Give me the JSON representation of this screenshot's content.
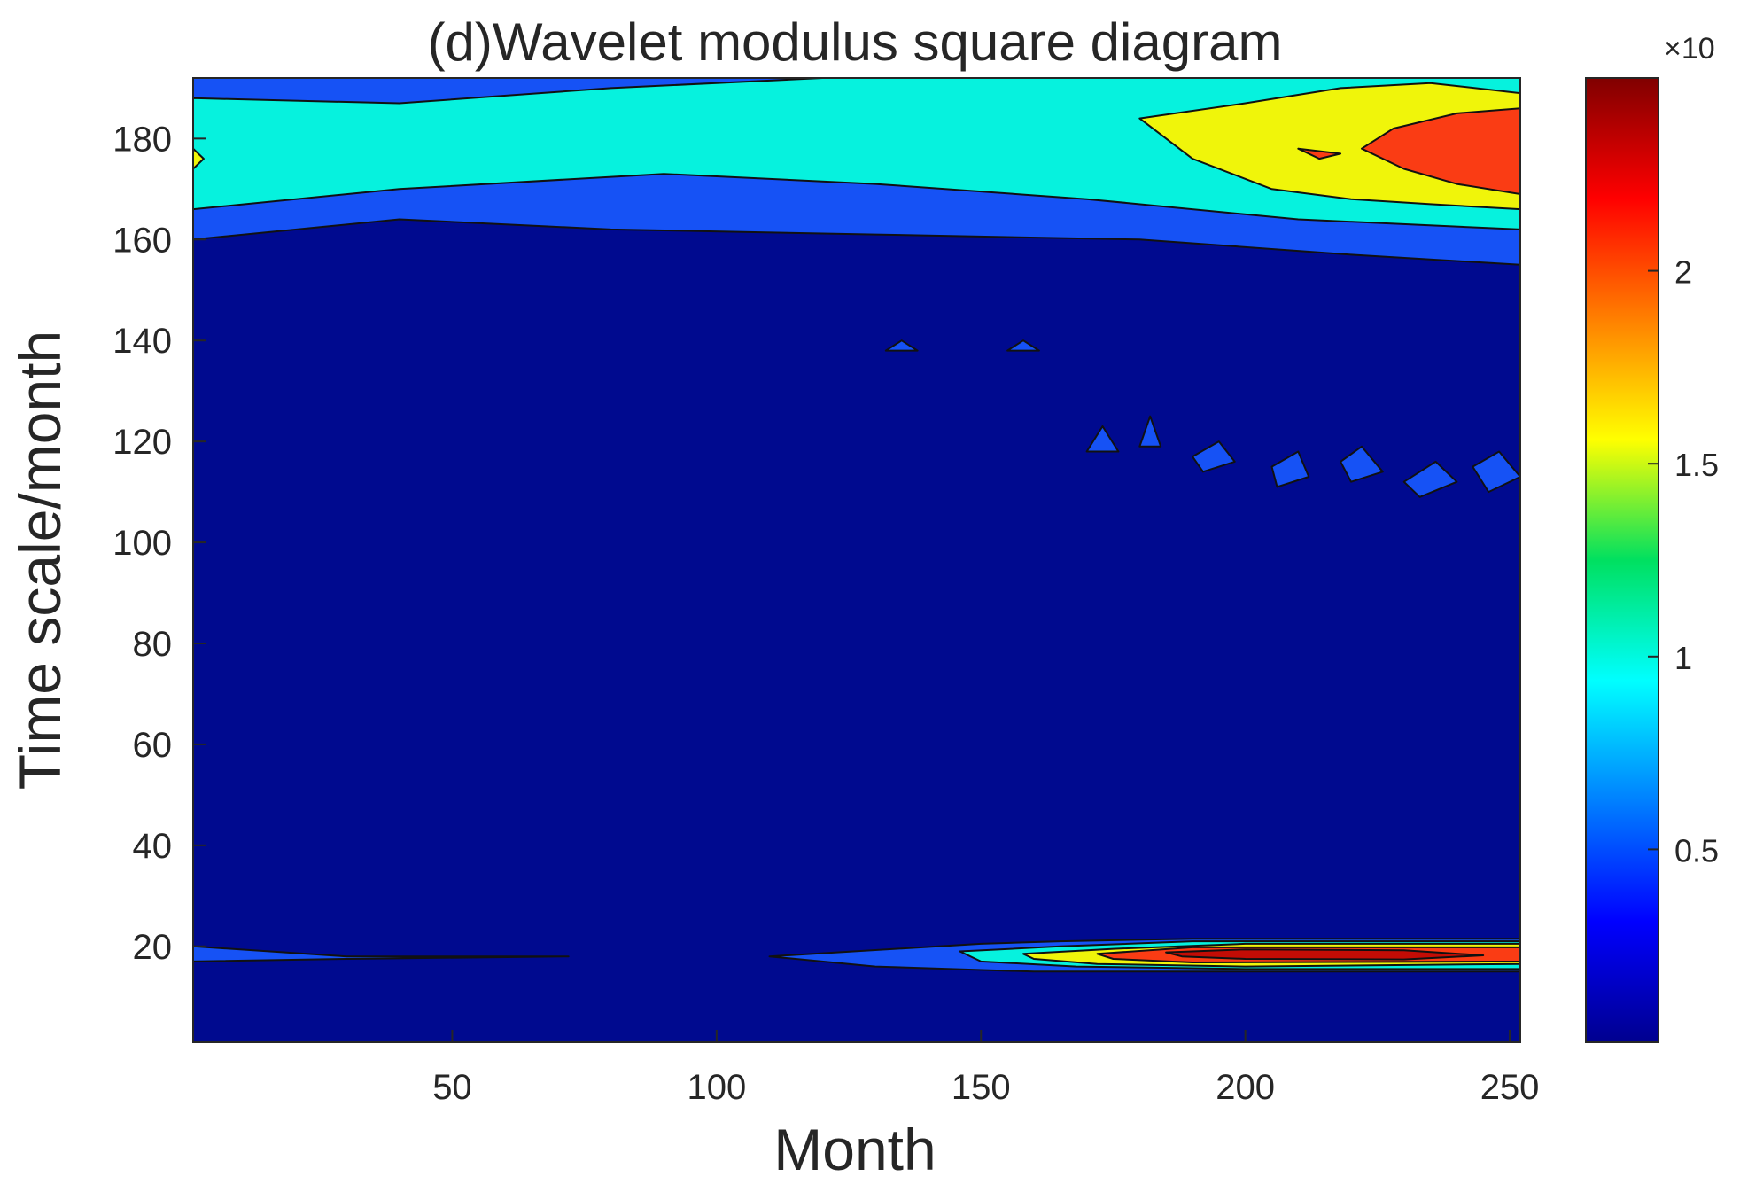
{
  "chart_data": {
    "type": "heatmap",
    "title": "(d)Wavelet modulus square diagram",
    "xlabel": "Month",
    "ylabel": "Time scale/month",
    "xlim": [
      1,
      252
    ],
    "ylim": [
      1,
      192
    ],
    "xticks": [
      50,
      100,
      150,
      200,
      250
    ],
    "yticks": [
      20,
      40,
      60,
      80,
      100,
      120,
      140,
      160,
      180
    ],
    "colorbar": {
      "colormap": "jet",
      "exponent_label": "×10",
      "ticks": [
        0.5,
        1,
        1.5,
        2
      ],
      "tick_labels": [
        "0.5",
        "1",
        "1.5",
        "2"
      ],
      "range": [
        0,
        2.5
      ]
    },
    "levels": [
      {
        "level": 0,
        "color": "#000a8f"
      },
      {
        "level": 1,
        "color": "#1652f5"
      },
      {
        "level": 2,
        "color": "#06f2de"
      },
      {
        "level": 3,
        "color": "#f0f50a"
      },
      {
        "level": 4,
        "color": "#fa3c14"
      },
      {
        "level": 5,
        "color": "#c30c05"
      }
    ],
    "regions": [
      {
        "level": 1,
        "x": [
          1,
          1,
          40,
          80,
          130,
          180,
          220,
          252,
          252,
          220,
          170,
          110,
          50,
          1
        ],
        "y": [
          192,
          160,
          164,
          162,
          161,
          160,
          157,
          155,
          192,
          192,
          192,
          192,
          192,
          192
        ]
      },
      {
        "level": 2,
        "x": [
          1,
          1,
          40,
          90,
          130,
          170,
          210,
          252,
          252,
          210,
          160,
          120,
          80,
          40,
          1
        ],
        "y": [
          188,
          166,
          170,
          173,
          171,
          168,
          164,
          162,
          192,
          192,
          192,
          192,
          190,
          187,
          188
        ]
      },
      {
        "level": 3,
        "x": [
          1,
          1,
          3
        ],
        "y": [
          178,
          174,
          176
        ]
      },
      {
        "level": 3,
        "x": [
          180,
          190,
          205,
          220,
          235,
          252,
          252,
          235,
          218,
          200
        ],
        "y": [
          184,
          176,
          170,
          168,
          167,
          166,
          189,
          191,
          190,
          187
        ]
      },
      {
        "level": 4,
        "x": [
          222,
          230,
          240,
          252,
          252,
          240,
          228
        ],
        "y": [
          178,
          174,
          171,
          169,
          186,
          185,
          182
        ]
      },
      {
        "level": 4,
        "x": [
          210,
          214,
          218
        ],
        "y": [
          178,
          176,
          177
        ]
      },
      {
        "level": 1,
        "x": [
          1,
          30,
          72,
          30,
          1
        ],
        "y": [
          20,
          18,
          18,
          17.5,
          17
        ]
      },
      {
        "level": 1,
        "x": [
          110,
          150,
          165,
          190,
          252,
          252,
          200,
          160,
          130,
          110
        ],
        "y": [
          18,
          20.5,
          21,
          21.5,
          21.5,
          15,
          15,
          15,
          16,
          18
        ]
      },
      {
        "level": 2,
        "x": [
          146,
          165,
          190,
          252,
          252,
          200,
          168,
          150
        ],
        "y": [
          19,
          20,
          21,
          21,
          15.5,
          15.5,
          16,
          17
        ]
      },
      {
        "level": 3,
        "x": [
          158,
          175,
          200,
          252,
          252,
          200,
          172,
          160
        ],
        "y": [
          18.5,
          19.5,
          20.5,
          20.5,
          16.5,
          16,
          16.5,
          17.5
        ]
      },
      {
        "level": 4,
        "x": [
          172,
          190,
          252,
          252,
          190,
          175
        ],
        "y": [
          18.5,
          19.8,
          19.8,
          17,
          16.8,
          17.5
        ]
      },
      {
        "level": 5,
        "x": [
          185,
          200,
          230,
          245,
          230,
          200,
          188
        ],
        "y": [
          18.8,
          19.4,
          19.2,
          18.2,
          17.4,
          17.5,
          18
        ]
      },
      {
        "level": 1,
        "x": [
          132,
          135,
          138
        ],
        "y": [
          138,
          140,
          138
        ]
      },
      {
        "level": 1,
        "x": [
          155,
          158,
          161
        ],
        "y": [
          138,
          140,
          138
        ]
      },
      {
        "level": 1,
        "x": [
          170,
          173,
          176
        ],
        "y": [
          118,
          123,
          118
        ]
      },
      {
        "level": 1,
        "x": [
          180,
          182,
          184
        ],
        "y": [
          119,
          125,
          119
        ]
      },
      {
        "level": 1,
        "x": [
          190,
          195,
          198,
          192
        ],
        "y": [
          117,
          120,
          116,
          114
        ]
      },
      {
        "level": 1,
        "x": [
          205,
          210,
          212,
          206
        ],
        "y": [
          115,
          118,
          113,
          111
        ]
      },
      {
        "level": 1,
        "x": [
          218,
          222,
          226,
          220
        ],
        "y": [
          116,
          119,
          114,
          112
        ]
      },
      {
        "level": 1,
        "x": [
          230,
          236,
          240,
          233
        ],
        "y": [
          112,
          116,
          112,
          109
        ]
      },
      {
        "level": 1,
        "x": [
          243,
          248,
          252,
          246
        ],
        "y": [
          115,
          118,
          113,
          110
        ]
      }
    ]
  }
}
